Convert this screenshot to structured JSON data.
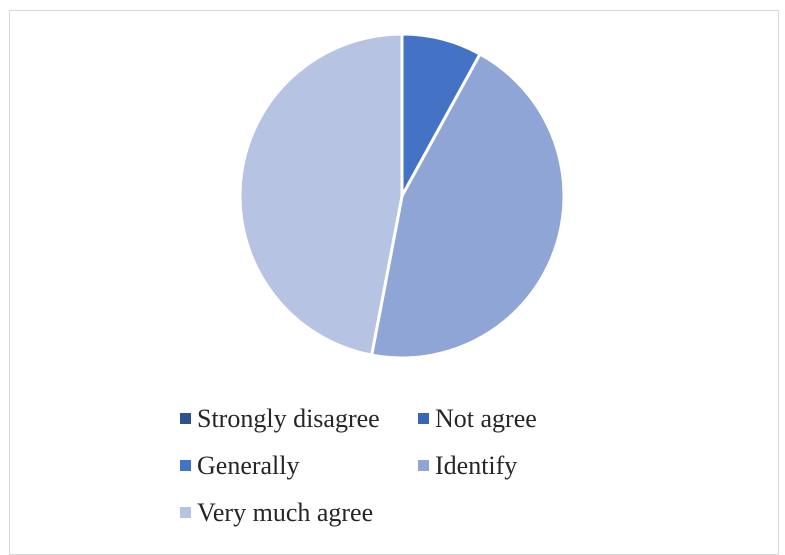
{
  "chart_data": {
    "type": "pie",
    "title": "",
    "categories": [
      "Strongly disagree",
      "Not agree",
      "Generally",
      "Identify",
      "Very much agree"
    ],
    "values": [
      0,
      0,
      8,
      45,
      47
    ],
    "colors": [
      "#2F528F",
      "#3A64B8",
      "#4472C4",
      "#8FA5D6",
      "#B7C3E3"
    ],
    "start_angle_deg": 0,
    "direction": "clockwise",
    "legend_position": "bottom"
  },
  "legend": {
    "rows": [
      [
        {
          "label": "Strongly disagree",
          "color": "#2F528F"
        },
        {
          "label": "Not agree",
          "color": "#3A64B8"
        }
      ],
      [
        {
          "label": "Generally",
          "color": "#4472C4"
        },
        {
          "label": "Identify",
          "color": "#8FA5D6"
        }
      ],
      [
        {
          "label": "Very much agree",
          "color": "#B7C3E3"
        }
      ]
    ]
  }
}
